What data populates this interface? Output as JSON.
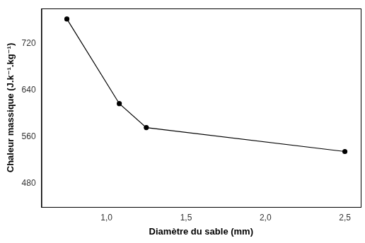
{
  "chart_data": {
    "type": "line",
    "x_label": "Diamètre du sable (mm)",
    "y_label": "Chaleur massique (J.k⁻¹.kg⁻¹)",
    "x": [
      0.75,
      1.08,
      1.25,
      2.5
    ],
    "values": [
      762,
      617,
      576,
      535
    ],
    "color": "#000000",
    "marker": "circle",
    "line_style": "solid",
    "xlim": [
      0.59,
      2.6
    ],
    "xticks": [
      {
        "value": 1.0,
        "label": "1,0"
      },
      {
        "value": 1.5,
        "label": "1,5"
      },
      {
        "value": 2.0,
        "label": "2,0"
      },
      {
        "value": 2.5,
        "label": "2,5"
      }
    ],
    "ylim": [
      440,
      780
    ],
    "yticks": [
      480,
      560,
      640,
      720
    ],
    "grid": false
  }
}
